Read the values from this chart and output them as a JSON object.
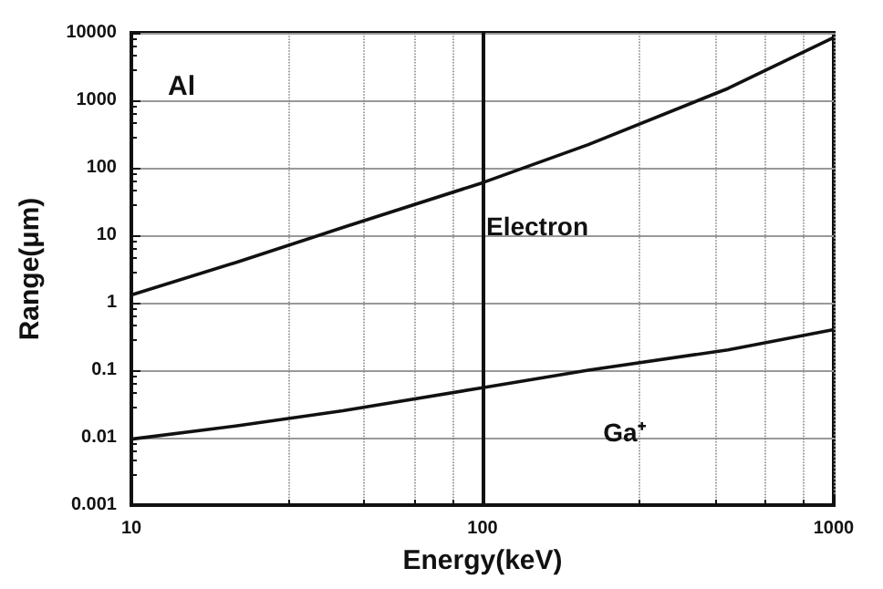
{
  "chart_data": {
    "type": "line",
    "xlabel": "Energy(keV)",
    "ylabel": "Range(μm)",
    "log": "xy",
    "xlim": [
      10,
      1000
    ],
    "xticks": [
      10,
      100,
      1000
    ],
    "ylim": [
      0.001,
      10000
    ],
    "yticks": [
      0.001,
      0.01,
      0.1,
      1,
      10,
      100,
      1000,
      10000
    ],
    "x": [
      10,
      20,
      40,
      100,
      200,
      500,
      1000
    ],
    "series": [
      {
        "name": "Electron",
        "color": "#111111",
        "values": [
          1.3,
          4,
          13,
          60,
          220,
          1500,
          8500
        ]
      },
      {
        "name": "Ga⁺",
        "color": "#111111",
        "values": [
          0.0095,
          0.015,
          0.025,
          0.055,
          0.1,
          0.2,
          0.4
        ]
      }
    ],
    "annotations": [
      "Al"
    ],
    "ref_lines": [
      {
        "axis": "x",
        "value": 100,
        "color": "#111111"
      }
    ],
    "grid": true,
    "legend": false,
    "marker": "none",
    "line_style": "solid"
  }
}
